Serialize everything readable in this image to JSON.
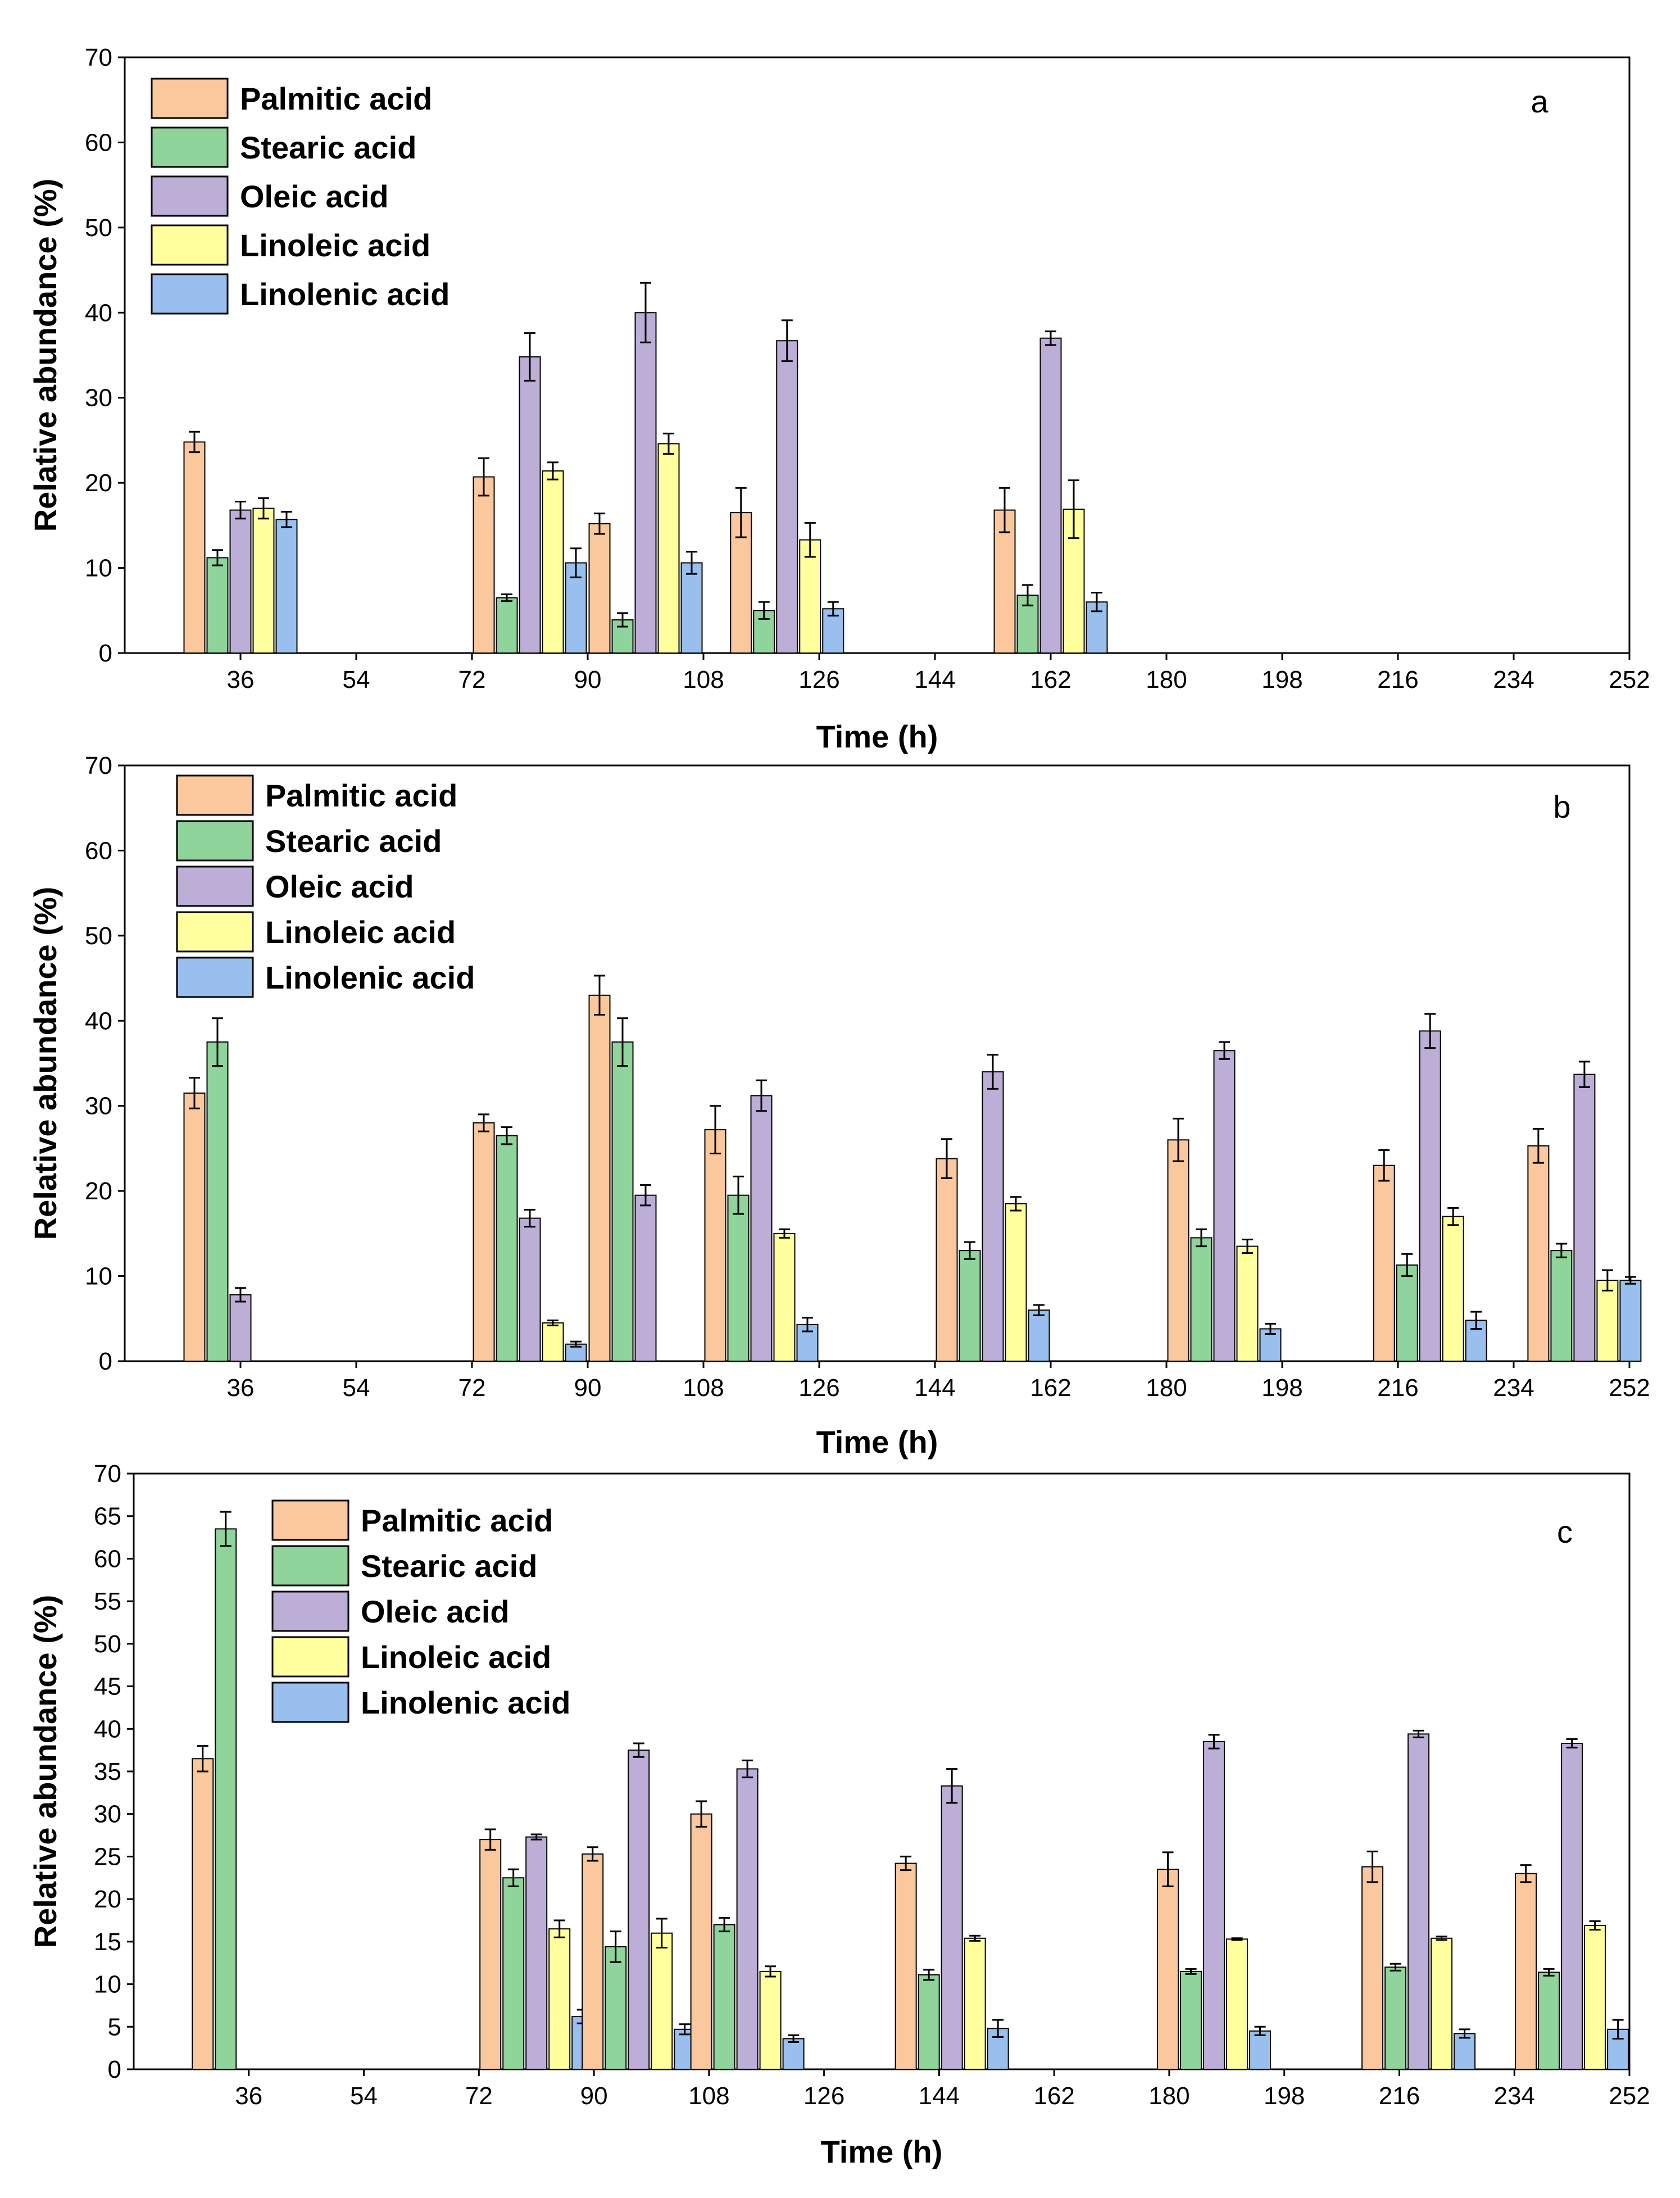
{
  "colors": {
    "Palmitic acid": "#FAC89C",
    "Stearic acid": "#8FD49A",
    "Oleic acid": "#BCAED6",
    "Linoleic acid": "#FFFF9E",
    "Linolenic acid": "#99BFEE"
  },
  "chart_data": [
    {
      "type": "bar",
      "panel_label": "a",
      "xlabel": "Time (h)",
      "ylabel": "Relative abundance (%)",
      "ylim": [
        0,
        70
      ],
      "yticks": [
        "0",
        "10",
        "20",
        "30",
        "40",
        "50",
        "60",
        "70"
      ],
      "xlim": [
        18,
        252
      ],
      "xticks": [
        "36",
        "54",
        "72",
        "90",
        "108",
        "126",
        "144",
        "162",
        "180",
        "198",
        "216",
        "234",
        "252"
      ],
      "legend_position": "top-left",
      "legend": [
        "Palmitic acid",
        "Stearic acid",
        "Oleic acid",
        "Linoleic acid",
        "Linolenic acid"
      ],
      "groups": [
        {
          "x": 36,
          "values": [
            24.8,
            11.2,
            16.8,
            17.0,
            15.7
          ],
          "errors": [
            1.2,
            0.9,
            1.0,
            1.2,
            0.9
          ]
        },
        {
          "x": 81,
          "values": [
            20.7,
            6.5,
            34.8,
            21.4,
            10.6
          ],
          "errors": [
            2.2,
            0.4,
            2.8,
            1.0,
            1.7
          ]
        },
        {
          "x": 99,
          "values": [
            15.2,
            3.9,
            40.0,
            24.6,
            10.6
          ],
          "errors": [
            1.2,
            0.8,
            3.5,
            1.2,
            1.3
          ]
        },
        {
          "x": 121,
          "values": [
            16.5,
            5.0,
            36.7,
            13.3,
            5.2
          ],
          "errors": [
            2.9,
            1.0,
            2.4,
            2.0,
            0.8
          ]
        },
        {
          "x": 162,
          "values": [
            16.8,
            6.8,
            37.0,
            16.9,
            6.0
          ],
          "errors": [
            2.6,
            1.2,
            0.8,
            3.4,
            1.1
          ]
        }
      ]
    },
    {
      "type": "bar",
      "panel_label": "b",
      "xlabel": "Time (h)",
      "ylabel": "Relative abundance (%)",
      "ylim": [
        0,
        70
      ],
      "yticks": [
        "0",
        "10",
        "20",
        "30",
        "40",
        "50",
        "60",
        "70"
      ],
      "xlim": [
        18,
        252
      ],
      "xticks": [
        "36",
        "54",
        "72",
        "90",
        "108",
        "126",
        "144",
        "162",
        "180",
        "198",
        "216",
        "234",
        "252"
      ],
      "legend_position": "top-left",
      "legend": [
        "Palmitic acid",
        "Stearic acid",
        "Oleic acid",
        "Linoleic acid",
        "Linolenic acid"
      ],
      "groups": [
        {
          "x": 36,
          "values": [
            31.5,
            37.5,
            7.8,
            null,
            null
          ],
          "errors": [
            1.8,
            2.8,
            0.8,
            null,
            null
          ]
        },
        {
          "x": 81,
          "values": [
            28.0,
            26.5,
            16.8,
            4.5,
            2.0
          ],
          "errors": [
            1.0,
            1.0,
            1.0,
            0.3,
            0.3
          ]
        },
        {
          "x": 99,
          "values": [
            43.0,
            37.5,
            19.5,
            null,
            null
          ],
          "errors": [
            2.3,
            2.8,
            1.2,
            null,
            null
          ]
        },
        {
          "x": 117,
          "values": [
            27.2,
            19.5,
            31.2,
            15.0,
            4.3
          ],
          "errors": [
            2.8,
            2.2,
            1.8,
            0.5,
            0.8
          ]
        },
        {
          "x": 153,
          "values": [
            23.8,
            13.0,
            34.0,
            18.5,
            6.0
          ],
          "errors": [
            2.3,
            1.0,
            2.0,
            0.8,
            0.6
          ]
        },
        {
          "x": 189,
          "values": [
            26.0,
            14.5,
            36.5,
            13.5,
            3.8
          ],
          "errors": [
            2.5,
            1.0,
            1.0,
            0.8,
            0.6
          ]
        },
        {
          "x": 221,
          "values": [
            23.0,
            11.3,
            38.8,
            17.0,
            4.8
          ],
          "errors": [
            1.8,
            1.3,
            2.0,
            1.0,
            1.0
          ]
        },
        {
          "x": 245,
          "values": [
            25.3,
            13.0,
            33.7,
            9.5,
            9.5
          ],
          "errors": [
            2.0,
            0.8,
            1.5,
            1.2,
            0.4
          ]
        }
      ]
    },
    {
      "type": "bar",
      "panel_label": "c",
      "xlabel": "Time (h)",
      "ylabel": "Relative abundance (%)",
      "ylim": [
        0,
        70
      ],
      "yticks": [
        "0",
        "5",
        "10",
        "15",
        "20",
        "25",
        "30",
        "35",
        "40",
        "45",
        "50",
        "55",
        "60",
        "65",
        "70"
      ],
      "xlim": [
        18,
        252
      ],
      "xticks": [
        "36",
        "54",
        "72",
        "90",
        "108",
        "126",
        "144",
        "162",
        "180",
        "198",
        "216",
        "234",
        "252"
      ],
      "legend_position": "top-left",
      "legend": [
        "Palmitic acid",
        "Stearic acid",
        "Oleic acid",
        "Linoleic acid",
        "Linolenic acid"
      ],
      "groups": [
        {
          "x": 36,
          "values": [
            36.5,
            63.5,
            null,
            null,
            null
          ],
          "errors": [
            1.5,
            2.0,
            null,
            null,
            null
          ]
        },
        {
          "x": 81,
          "values": [
            27.0,
            22.5,
            27.3,
            16.5,
            6.2
          ],
          "errors": [
            1.2,
            1.0,
            0.3,
            1.0,
            0.8
          ]
        },
        {
          "x": 97,
          "values": [
            25.3,
            14.4,
            37.5,
            16.0,
            4.7
          ],
          "errors": [
            0.8,
            1.8,
            0.8,
            1.7,
            0.6
          ]
        },
        {
          "x": 114,
          "values": [
            30.0,
            17.0,
            35.3,
            11.5,
            3.6
          ],
          "errors": [
            1.5,
            0.8,
            1.0,
            0.6,
            0.4
          ]
        },
        {
          "x": 146,
          "values": [
            24.2,
            11.1,
            33.3,
            15.4,
            4.8
          ],
          "errors": [
            0.8,
            0.6,
            2.0,
            0.3,
            1.0
          ]
        },
        {
          "x": 187,
          "values": [
            23.5,
            11.5,
            38.5,
            15.3,
            4.5
          ],
          "errors": [
            2.0,
            0.3,
            0.8,
            0.1,
            0.5
          ]
        },
        {
          "x": 219,
          "values": [
            23.8,
            12.0,
            39.4,
            15.4,
            4.2
          ],
          "errors": [
            1.8,
            0.4,
            0.4,
            0.2,
            0.5
          ]
        },
        {
          "x": 243,
          "values": [
            23.0,
            11.4,
            38.3,
            16.9,
            4.7
          ],
          "errors": [
            1.0,
            0.4,
            0.5,
            0.5,
            1.1
          ]
        }
      ]
    }
  ]
}
